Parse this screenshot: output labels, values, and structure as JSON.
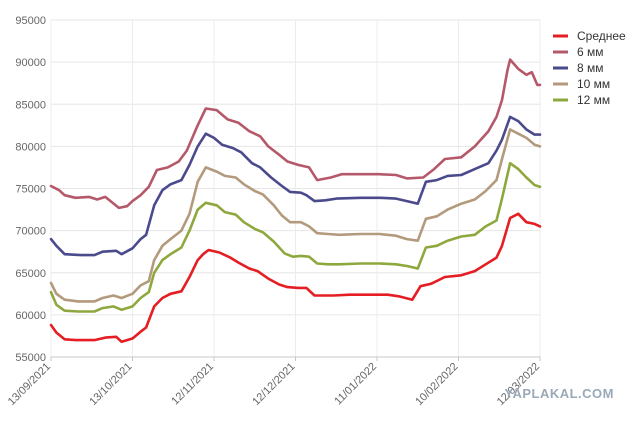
{
  "chart_data": {
    "type": "line",
    "title": "",
    "xlabel": "",
    "ylabel": "",
    "ylim": [
      55000,
      95000
    ],
    "y_ticks": [
      "55000",
      "60000",
      "65000",
      "70000",
      "75000",
      "80000",
      "85000",
      "90000",
      "95000"
    ],
    "x_tick_labels": [
      "13/09/2021",
      "13/10/2021",
      "12/11/2021",
      "12/12/2021",
      "11/01/2022",
      "10/02/2022",
      "12/03/2022"
    ],
    "grid": "horizontal",
    "legend_position": "right",
    "series": [
      {
        "name": "Среднее",
        "color": "#e41e22",
        "points": [
          [
            "2021-09-13",
            58800
          ],
          [
            "2021-09-15",
            57900
          ],
          [
            "2021-09-18",
            57100
          ],
          [
            "2021-09-22",
            57000
          ],
          [
            "2021-09-29",
            57000
          ],
          [
            "2021-10-03",
            57300
          ],
          [
            "2021-10-07",
            57400
          ],
          [
            "2021-10-09",
            56800
          ],
          [
            "2021-10-13",
            57200
          ],
          [
            "2021-10-16",
            58000
          ],
          [
            "2021-10-18",
            58500
          ],
          [
            "2021-10-21",
            61000
          ],
          [
            "2021-10-24",
            62000
          ],
          [
            "2021-10-27",
            62500
          ],
          [
            "2021-10-31",
            62800
          ],
          [
            "2021-11-03",
            64500
          ],
          [
            "2021-11-06",
            66500
          ],
          [
            "2021-11-08",
            67200
          ],
          [
            "2021-11-10",
            67700
          ],
          [
            "2021-11-14",
            67400
          ],
          [
            "2021-11-18",
            66800
          ],
          [
            "2021-11-21",
            66200
          ],
          [
            "2021-11-25",
            65500
          ],
          [
            "2021-11-28",
            65200
          ],
          [
            "2021-12-02",
            64300
          ],
          [
            "2021-12-06",
            63600
          ],
          [
            "2021-12-09",
            63300
          ],
          [
            "2021-12-13",
            63200
          ],
          [
            "2021-12-16",
            63200
          ],
          [
            "2021-12-19",
            62300
          ],
          [
            "2021-12-23",
            62300
          ],
          [
            "2021-12-26",
            62300
          ],
          [
            "2022-01-01",
            62400
          ],
          [
            "2022-01-08",
            62400
          ],
          [
            "2022-01-15",
            62400
          ],
          [
            "2022-01-19",
            62200
          ],
          [
            "2022-01-24",
            61800
          ],
          [
            "2022-01-27",
            63400
          ],
          [
            "2022-01-31",
            63700
          ],
          [
            "2022-02-05",
            64500
          ],
          [
            "2022-02-11",
            64700
          ],
          [
            "2022-02-16",
            65200
          ],
          [
            "2022-02-20",
            66000
          ],
          [
            "2022-02-24",
            66800
          ],
          [
            "2022-02-26",
            68200
          ],
          [
            "2022-03-01",
            71500
          ],
          [
            "2022-03-04",
            72000
          ],
          [
            "2022-03-07",
            71000
          ],
          [
            "2022-03-10",
            70800
          ],
          [
            "2022-03-12",
            70500
          ]
        ]
      },
      {
        "name": "6 мм",
        "color": "#b5596a",
        "points": [
          [
            "2021-09-13",
            75300
          ],
          [
            "2021-09-16",
            74800
          ],
          [
            "2021-09-18",
            74200
          ],
          [
            "2021-09-22",
            73900
          ],
          [
            "2021-09-27",
            74000
          ],
          [
            "2021-09-30",
            73700
          ],
          [
            "2021-10-03",
            74000
          ],
          [
            "2021-10-08",
            72700
          ],
          [
            "2021-10-11",
            72900
          ],
          [
            "2021-10-13",
            73500
          ],
          [
            "2021-10-16",
            74200
          ],
          [
            "2021-10-19",
            75200
          ],
          [
            "2021-10-22",
            77200
          ],
          [
            "2021-10-26",
            77500
          ],
          [
            "2021-10-30",
            78200
          ],
          [
            "2021-11-02",
            79500
          ],
          [
            "2021-11-06",
            82500
          ],
          [
            "2021-11-09",
            84500
          ],
          [
            "2021-11-13",
            84300
          ],
          [
            "2021-11-17",
            83200
          ],
          [
            "2021-11-21",
            82800
          ],
          [
            "2021-11-25",
            81800
          ],
          [
            "2021-11-29",
            81200
          ],
          [
            "2021-12-02",
            80000
          ],
          [
            "2021-12-06",
            79000
          ],
          [
            "2021-12-09",
            78200
          ],
          [
            "2021-12-13",
            77800
          ],
          [
            "2021-12-17",
            77500
          ],
          [
            "2021-12-20",
            76000
          ],
          [
            "2021-12-25",
            76300
          ],
          [
            "2021-12-29",
            76700
          ],
          [
            "2022-01-05",
            76700
          ],
          [
            "2022-01-12",
            76700
          ],
          [
            "2022-01-18",
            76600
          ],
          [
            "2022-01-22",
            76200
          ],
          [
            "2022-01-28",
            76300
          ],
          [
            "2022-02-01",
            77300
          ],
          [
            "2022-02-05",
            78500
          ],
          [
            "2022-02-11",
            78700
          ],
          [
            "2022-02-16",
            80000
          ],
          [
            "2022-02-21",
            81800
          ],
          [
            "2022-02-24",
            83500
          ],
          [
            "2022-02-26",
            85500
          ],
          [
            "2022-02-28",
            89000
          ],
          [
            "2022-03-01",
            90300
          ],
          [
            "2022-03-04",
            89200
          ],
          [
            "2022-03-07",
            88500
          ],
          [
            "2022-03-09",
            88800
          ],
          [
            "2022-03-11",
            87300
          ],
          [
            "2022-03-12",
            87300
          ]
        ]
      },
      {
        "name": "8 мм",
        "color": "#4b4a8c",
        "points": [
          [
            "2021-09-13",
            69000
          ],
          [
            "2021-09-15",
            68200
          ],
          [
            "2021-09-18",
            67200
          ],
          [
            "2021-09-24",
            67100
          ],
          [
            "2021-09-29",
            67100
          ],
          [
            "2021-10-02",
            67500
          ],
          [
            "2021-10-07",
            67600
          ],
          [
            "2021-10-09",
            67200
          ],
          [
            "2021-10-13",
            67900
          ],
          [
            "2021-10-16",
            69000
          ],
          [
            "2021-10-18",
            69500
          ],
          [
            "2021-10-21",
            73000
          ],
          [
            "2021-10-24",
            74800
          ],
          [
            "2021-10-27",
            75500
          ],
          [
            "2021-10-31",
            76000
          ],
          [
            "2021-11-03",
            77800
          ],
          [
            "2021-11-06",
            80000
          ],
          [
            "2021-11-09",
            81500
          ],
          [
            "2021-11-12",
            81000
          ],
          [
            "2021-11-15",
            80200
          ],
          [
            "2021-11-19",
            79800
          ],
          [
            "2021-11-22",
            79300
          ],
          [
            "2021-11-26",
            78000
          ],
          [
            "2021-11-29",
            77500
          ],
          [
            "2021-12-03",
            76300
          ],
          [
            "2021-12-07",
            75300
          ],
          [
            "2021-12-10",
            74600
          ],
          [
            "2021-12-14",
            74500
          ],
          [
            "2021-12-16",
            74200
          ],
          [
            "2021-12-19",
            73500
          ],
          [
            "2021-12-23",
            73600
          ],
          [
            "2021-12-27",
            73800
          ],
          [
            "2022-01-05",
            73900
          ],
          [
            "2022-01-12",
            73900
          ],
          [
            "2022-01-18",
            73800
          ],
          [
            "2022-01-22",
            73500
          ],
          [
            "2022-01-26",
            73200
          ],
          [
            "2022-01-29",
            75800
          ],
          [
            "2022-02-02",
            76000
          ],
          [
            "2022-02-06",
            76500
          ],
          [
            "2022-02-11",
            76600
          ],
          [
            "2022-02-16",
            77300
          ],
          [
            "2022-02-21",
            78000
          ],
          [
            "2022-02-24",
            79500
          ],
          [
            "2022-02-26",
            80800
          ],
          [
            "2022-03-01",
            83500
          ],
          [
            "2022-03-04",
            83000
          ],
          [
            "2022-03-07",
            82000
          ],
          [
            "2022-03-10",
            81400
          ],
          [
            "2022-03-12",
            81400
          ]
        ]
      },
      {
        "name": "10 мм",
        "color": "#b39a7c",
        "points": [
          [
            "2021-09-13",
            63800
          ],
          [
            "2021-09-15",
            62500
          ],
          [
            "2021-09-18",
            61800
          ],
          [
            "2021-09-23",
            61600
          ],
          [
            "2021-09-29",
            61600
          ],
          [
            "2021-10-02",
            62000
          ],
          [
            "2021-10-06",
            62300
          ],
          [
            "2021-10-09",
            62000
          ],
          [
            "2021-10-13",
            62500
          ],
          [
            "2021-10-16",
            63500
          ],
          [
            "2021-10-19",
            64000
          ],
          [
            "2021-10-21",
            66500
          ],
          [
            "2021-10-24",
            68200
          ],
          [
            "2021-10-27",
            69000
          ],
          [
            "2021-10-31",
            70000
          ],
          [
            "2021-11-03",
            72000
          ],
          [
            "2021-11-06",
            75800
          ],
          [
            "2021-11-09",
            77500
          ],
          [
            "2021-11-13",
            77000
          ],
          [
            "2021-11-16",
            76500
          ],
          [
            "2021-11-20",
            76300
          ],
          [
            "2021-11-23",
            75500
          ],
          [
            "2021-11-27",
            74700
          ],
          [
            "2021-11-30",
            74300
          ],
          [
            "2021-12-04",
            73000
          ],
          [
            "2021-12-07",
            71800
          ],
          [
            "2021-12-10",
            71000
          ],
          [
            "2021-12-14",
            71000
          ],
          [
            "2021-12-17",
            70500
          ],
          [
            "2021-12-20",
            69700
          ],
          [
            "2021-12-24",
            69600
          ],
          [
            "2021-12-28",
            69500
          ],
          [
            "2022-01-05",
            69600
          ],
          [
            "2022-01-12",
            69600
          ],
          [
            "2022-01-18",
            69400
          ],
          [
            "2022-01-22",
            69000
          ],
          [
            "2022-01-26",
            68800
          ],
          [
            "2022-01-29",
            71400
          ],
          [
            "2022-02-02",
            71700
          ],
          [
            "2022-02-06",
            72500
          ],
          [
            "2022-02-11",
            73200
          ],
          [
            "2022-02-16",
            73700
          ],
          [
            "2022-02-20",
            74700
          ],
          [
            "2022-02-24",
            76000
          ],
          [
            "2022-02-26",
            78500
          ],
          [
            "2022-03-01",
            82000
          ],
          [
            "2022-03-04",
            81500
          ],
          [
            "2022-03-07",
            81000
          ],
          [
            "2022-03-10",
            80200
          ],
          [
            "2022-03-12",
            80000
          ]
        ]
      },
      {
        "name": "12 мм",
        "color": "#8fa83e",
        "points": [
          [
            "2021-09-13",
            62700
          ],
          [
            "2021-09-15",
            61200
          ],
          [
            "2021-09-18",
            60500
          ],
          [
            "2021-09-23",
            60400
          ],
          [
            "2021-09-29",
            60400
          ],
          [
            "2021-10-02",
            60800
          ],
          [
            "2021-10-06",
            61000
          ],
          [
            "2021-10-09",
            60600
          ],
          [
            "2021-10-13",
            61000
          ],
          [
            "2021-10-16",
            62000
          ],
          [
            "2021-10-19",
            62700
          ],
          [
            "2021-10-21",
            65000
          ],
          [
            "2021-10-24",
            66500
          ],
          [
            "2021-10-27",
            67200
          ],
          [
            "2021-10-31",
            68000
          ],
          [
            "2021-11-03",
            70000
          ],
          [
            "2021-11-06",
            72500
          ],
          [
            "2021-11-09",
            73300
          ],
          [
            "2021-11-13",
            73000
          ],
          [
            "2021-11-16",
            72200
          ],
          [
            "2021-11-20",
            71900
          ],
          [
            "2021-11-23",
            71000
          ],
          [
            "2021-11-27",
            70200
          ],
          [
            "2021-11-30",
            69800
          ],
          [
            "2021-12-04",
            68700
          ],
          [
            "2021-12-08",
            67300
          ],
          [
            "2021-12-11",
            66900
          ],
          [
            "2021-12-14",
            67000
          ],
          [
            "2021-12-17",
            66900
          ],
          [
            "2021-12-20",
            66100
          ],
          [
            "2021-12-24",
            66000
          ],
          [
            "2021-12-28",
            66000
          ],
          [
            "2022-01-05",
            66100
          ],
          [
            "2022-01-12",
            66100
          ],
          [
            "2022-01-18",
            66000
          ],
          [
            "2022-01-22",
            65800
          ],
          [
            "2022-01-26",
            65500
          ],
          [
            "2022-01-29",
            68000
          ],
          [
            "2022-02-02",
            68200
          ],
          [
            "2022-02-06",
            68800
          ],
          [
            "2022-02-11",
            69300
          ],
          [
            "2022-02-16",
            69500
          ],
          [
            "2022-02-20",
            70500
          ],
          [
            "2022-02-24",
            71200
          ],
          [
            "2022-02-26",
            73800
          ],
          [
            "2022-03-01",
            78000
          ],
          [
            "2022-03-04",
            77300
          ],
          [
            "2022-03-07",
            76300
          ],
          [
            "2022-03-10",
            75400
          ],
          [
            "2022-03-12",
            75200
          ]
        ]
      }
    ]
  },
  "watermark": "YAPLAKAL.COM"
}
